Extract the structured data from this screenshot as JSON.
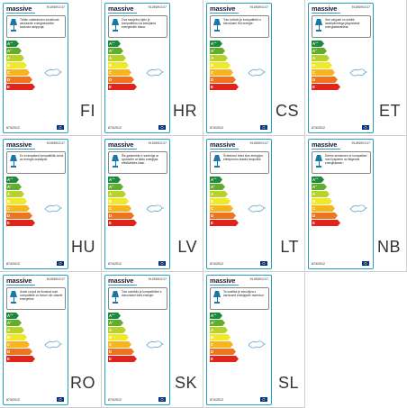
{
  "label_template": {
    "brand": "massive",
    "product_code": "0190901I47",
    "regulation": "874/2012",
    "classes": [
      {
        "letter": "A",
        "sup": "++",
        "color": "#1c8a3a"
      },
      {
        "letter": "A",
        "sup": "+",
        "color": "#5fae2e"
      },
      {
        "letter": "A",
        "sup": "",
        "color": "#b9d22b"
      },
      {
        "letter": "B",
        "sup": "",
        "color": "#f0e82a"
      },
      {
        "letter": "C",
        "sup": "",
        "color": "#f7b41c"
      },
      {
        "letter": "D",
        "sup": "",
        "color": "#ee7420"
      },
      {
        "letter": "E",
        "sup": "",
        "color": "#e2231a"
      }
    ]
  },
  "cells": [
    {
      "lang": "FI",
      "text": "Tähän valaisimeen soveltuvat seuraaviin energialuokkiin kuuluvia lamppuja:"
    },
    {
      "lang": "HR",
      "text": "Ova rasvjetno tijelo je kompatibilno sa žaruljama energetskih klasa:"
    },
    {
      "lang": "CS",
      "text": "Toto svítidlo je kompatibilní s žárovkami tříd energie:"
    },
    {
      "lang": "ET",
      "text": "See valgusti on sobilik lambipirnidega järgmistest energiaklassidest:"
    },
    {
      "lang": "HU",
      "text": "Ez a lámpatest kompatibilis izzók az energia osztályok:"
    },
    {
      "lang": "LV",
      "text": "Šis gaismeklis ir saderīgs ar spuldzēm ar šādu enerģijas efektivitātes klasi:"
    },
    {
      "lang": "LT",
      "text": "Šviestuvui tinka šios energijos efektyvumo klasės lemputės:"
    },
    {
      "lang": "NB",
      "text": "Denne armaturen er kompatibel med lyspærer av følgende energiklasser:"
    },
    {
      "lang": "RO",
      "text": "Acest corpul de iluminat sunt compatibile cu becuri din clasele energetice:"
    },
    {
      "lang": "SK",
      "text": "Toto svietidlo je kompatibilné s žiarovkami tried energie:"
    },
    {
      "lang": "SL",
      "text": "Ta svetilka je združljiva z žarnicami energijskih razredov:"
    }
  ]
}
